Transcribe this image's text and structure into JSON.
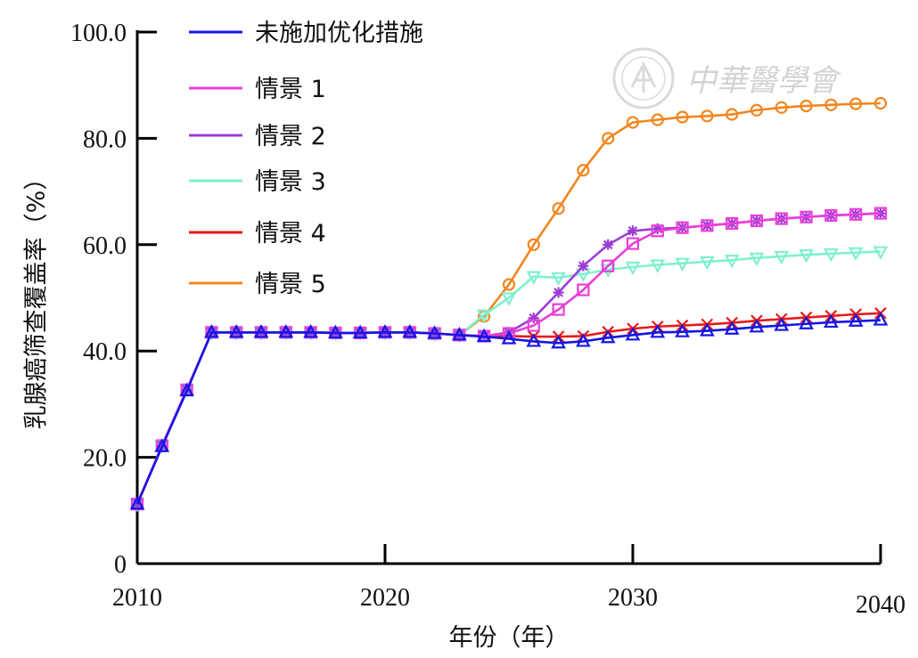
{
  "chart_data": {
    "type": "line",
    "xlabel": "年份（年）",
    "ylabel": "乳腺癌筛查覆盖率（%）",
    "xlim": [
      2010,
      2040
    ],
    "ylim": [
      0,
      100
    ],
    "x_ticks": [
      "2010",
      "2020",
      "2030",
      "2040"
    ],
    "y_ticks": [
      "0",
      "20.0",
      "40.0",
      "60.0",
      "80.0",
      "100.0"
    ],
    "legend_position": "top-left",
    "grid": false,
    "x": [
      2010,
      2011,
      2012,
      2013,
      2014,
      2015,
      2016,
      2017,
      2018,
      2019,
      2020,
      2021,
      2022,
      2023,
      2024,
      2025,
      2026,
      2027,
      2028,
      2029,
      2030,
      2031,
      2032,
      2033,
      2034,
      2035,
      2036,
      2037,
      2038,
      2039,
      2040
    ],
    "series": [
      {
        "name": "未施加优化措施",
        "color": "#1515e6",
        "marker": "triangle",
        "values": [
          11.2,
          22.0,
          32.5,
          43.5,
          43.5,
          43.5,
          43.5,
          43.5,
          43.4,
          43.4,
          43.5,
          43.5,
          43.3,
          43.0,
          42.7,
          42.3,
          41.8,
          41.5,
          41.8,
          42.5,
          43.0,
          43.5,
          43.6,
          43.8,
          44.1,
          44.5,
          44.8,
          45.1,
          45.4,
          45.6,
          45.8
        ]
      },
      {
        "name": "情景 1",
        "color": "#e83fd8",
        "marker": "square",
        "values": [
          11.2,
          22.2,
          32.7,
          43.5,
          43.5,
          43.5,
          43.5,
          43.5,
          43.4,
          43.4,
          43.5,
          43.5,
          43.3,
          43.0,
          42.8,
          43.3,
          44.8,
          47.8,
          51.5,
          56.0,
          60.2,
          62.6,
          63.2,
          63.6,
          64.0,
          64.5,
          64.9,
          65.2,
          65.5,
          65.7,
          65.9
        ]
      },
      {
        "name": "情景 2",
        "color": "#9a3cd6",
        "marker": "star",
        "values": [
          11.2,
          22.2,
          32.7,
          43.5,
          43.5,
          43.5,
          43.5,
          43.5,
          43.4,
          43.4,
          43.5,
          43.5,
          43.3,
          43.0,
          42.8,
          43.5,
          46.2,
          51.0,
          56.0,
          60.0,
          62.6,
          63.0,
          63.2,
          63.6,
          64.0,
          64.5,
          64.9,
          65.2,
          65.5,
          65.7,
          65.9
        ]
      },
      {
        "name": "情景 3",
        "color": "#7ff0cf",
        "marker": "triangle-down",
        "values": [
          11.2,
          22.2,
          32.7,
          43.5,
          43.5,
          43.5,
          43.5,
          43.5,
          43.4,
          43.4,
          43.5,
          43.5,
          43.3,
          43.0,
          46.8,
          50.0,
          54.0,
          53.8,
          54.5,
          55.3,
          55.8,
          56.2,
          56.5,
          56.8,
          57.1,
          57.5,
          57.8,
          58.1,
          58.3,
          58.5,
          58.7
        ]
      },
      {
        "name": "情景 4",
        "color": "#e61919",
        "marker": "x",
        "values": [
          11.2,
          22.2,
          32.7,
          43.5,
          43.5,
          43.5,
          43.5,
          43.5,
          43.4,
          43.4,
          43.5,
          43.5,
          43.3,
          43.0,
          42.8,
          42.8,
          42.7,
          42.7,
          42.8,
          43.6,
          44.2,
          44.6,
          44.8,
          45.0,
          45.3,
          45.7,
          46.0,
          46.3,
          46.6,
          46.9,
          47.1
        ]
      },
      {
        "name": "情景 5",
        "color": "#f2861e",
        "marker": "circle",
        "values": [
          11.2,
          22.2,
          32.7,
          43.5,
          43.5,
          43.5,
          43.5,
          43.5,
          43.4,
          43.4,
          43.5,
          43.5,
          43.3,
          43.0,
          46.5,
          52.5,
          60.0,
          66.8,
          74.0,
          80.0,
          83.0,
          83.5,
          84.0,
          84.2,
          84.5,
          85.3,
          85.8,
          86.1,
          86.3,
          86.5,
          86.6
        ]
      }
    ]
  },
  "watermark": {
    "text": "中華醫學會",
    "color": "#cfcfcf"
  }
}
